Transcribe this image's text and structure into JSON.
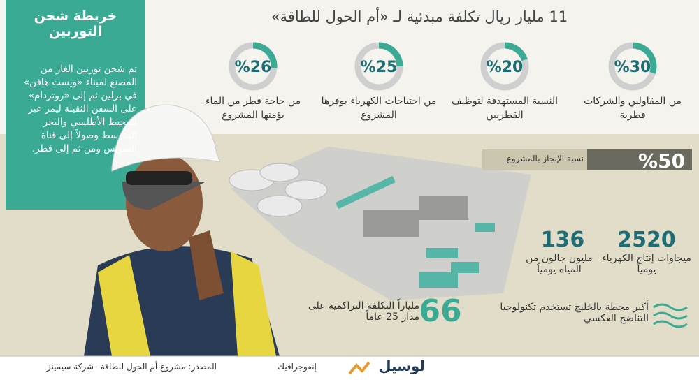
{
  "header": {
    "title": "11 مليار ريال تكلفة مبدئية لـ «أم الحول للطاقة»"
  },
  "side_panel": {
    "title": "خريطة شحن التوربين",
    "body": "تم شحن توربين الغاز من المصنع لميناء «ويست هافن» في برلين ثم إلى «روتردام» على السفن الثقيلة ليمر عبر المحيط الأطلسي والبحر المتوسط وصولاً إلى قناة السويس ومن ثم إلى قطر."
  },
  "donuts": [
    {
      "value": 30,
      "label": "%30",
      "caption": "من المقاولين والشركات قطرية"
    },
    {
      "value": 20,
      "label": "%20",
      "caption": "النسبة المستهدفة لتوظيف القطريين"
    },
    {
      "value": 25,
      "label": "%25",
      "caption": "من احتياجات الكهرباء يوفرها المشروع"
    },
    {
      "value": 26,
      "label": "%26",
      "caption": "من حاجة قطر من الماء يؤمنها المشروع"
    }
  ],
  "progress": {
    "value": 50,
    "label": "%50",
    "caption": "نسبة الإنجاز بالمشروع"
  },
  "stats": [
    {
      "number": "2520",
      "caption": "ميجاوات إنتاج الكهرباء يومياً"
    },
    {
      "number": "136",
      "caption": "مليون جالون من المياه يومياً"
    },
    {
      "number": "66",
      "caption": "ملياراً التكلفة التراكمية على مدار 25 عاماً"
    }
  ],
  "note": "أكبر محطة بالخليج تستخدم تكنولوجيا التناضح العكسي",
  "footer": {
    "source": "المصدر: مشروع أم الحول للطاقة –شركة سيمينز",
    "section": "إنفوجرافيك",
    "brand": "لوسيل"
  }
}
